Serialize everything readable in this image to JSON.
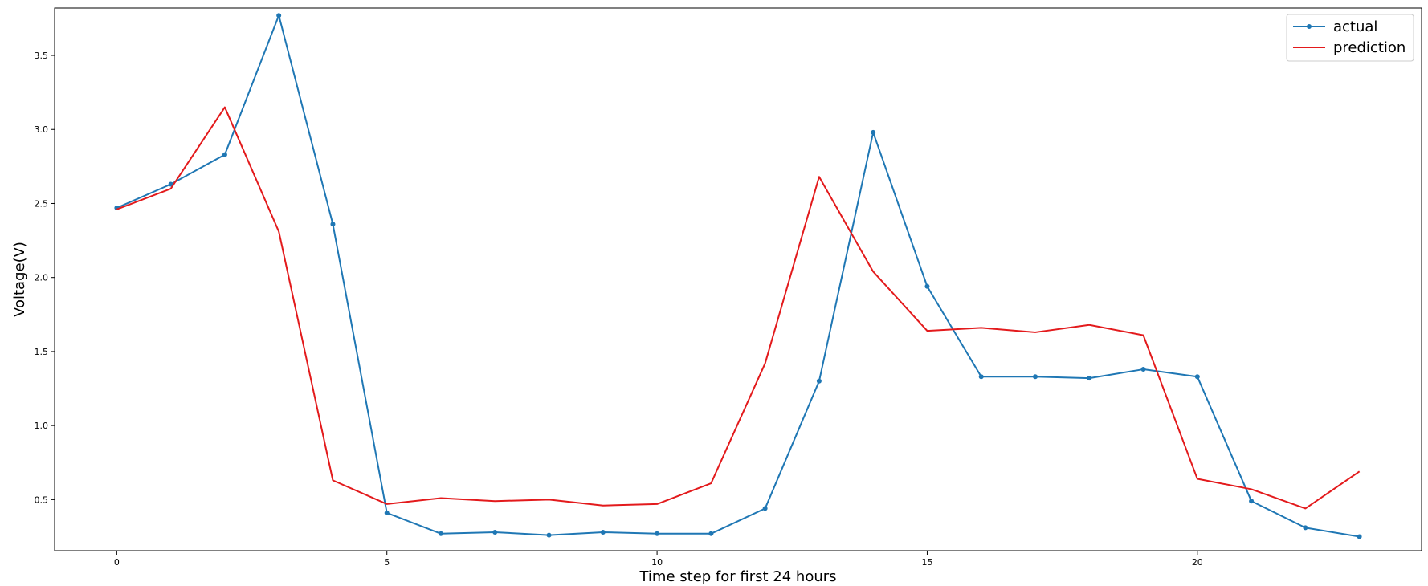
{
  "chart_data": {
    "type": "line",
    "title": "",
    "xlabel": "Time step for first 24 hours",
    "ylabel": "Voltage(V)",
    "x": [
      0,
      1,
      2,
      3,
      4,
      5,
      6,
      7,
      8,
      9,
      10,
      11,
      12,
      13,
      14,
      15,
      16,
      17,
      18,
      19,
      20,
      21,
      22,
      23
    ],
    "xlim": [
      -1.15,
      24.15
    ],
    "ylim": [
      0.155,
      3.82
    ],
    "xticks": [
      0,
      5,
      10,
      15,
      20
    ],
    "xtick_labels": [
      "0",
      "5",
      "10",
      "15",
      "20"
    ],
    "yticks": [
      0.5,
      1.0,
      1.5,
      2.0,
      2.5,
      3.0,
      3.5
    ],
    "ytick_labels": [
      "0.5",
      "1.0",
      "1.5",
      "2.0",
      "2.5",
      "3.0",
      "3.5"
    ],
    "grid": false,
    "legend_position": "top-right",
    "series": [
      {
        "name": "actual",
        "color": "#1f77b4",
        "marker": "dot",
        "values": [
          2.47,
          2.63,
          2.83,
          3.77,
          2.36,
          0.41,
          0.27,
          0.28,
          0.26,
          0.28,
          0.27,
          0.27,
          0.44,
          1.3,
          2.98,
          1.94,
          1.33,
          1.33,
          1.32,
          1.38,
          1.33,
          0.49,
          0.31,
          0.25
        ]
      },
      {
        "name": "prediction",
        "color": "#e31a1c",
        "marker": "none",
        "values": [
          2.46,
          2.6,
          3.15,
          2.31,
          0.63,
          0.47,
          0.51,
          0.49,
          0.5,
          0.46,
          0.47,
          0.61,
          1.42,
          2.68,
          2.04,
          1.64,
          1.66,
          1.63,
          1.68,
          1.61,
          0.64,
          0.57,
          0.44,
          0.69
        ]
      }
    ]
  }
}
